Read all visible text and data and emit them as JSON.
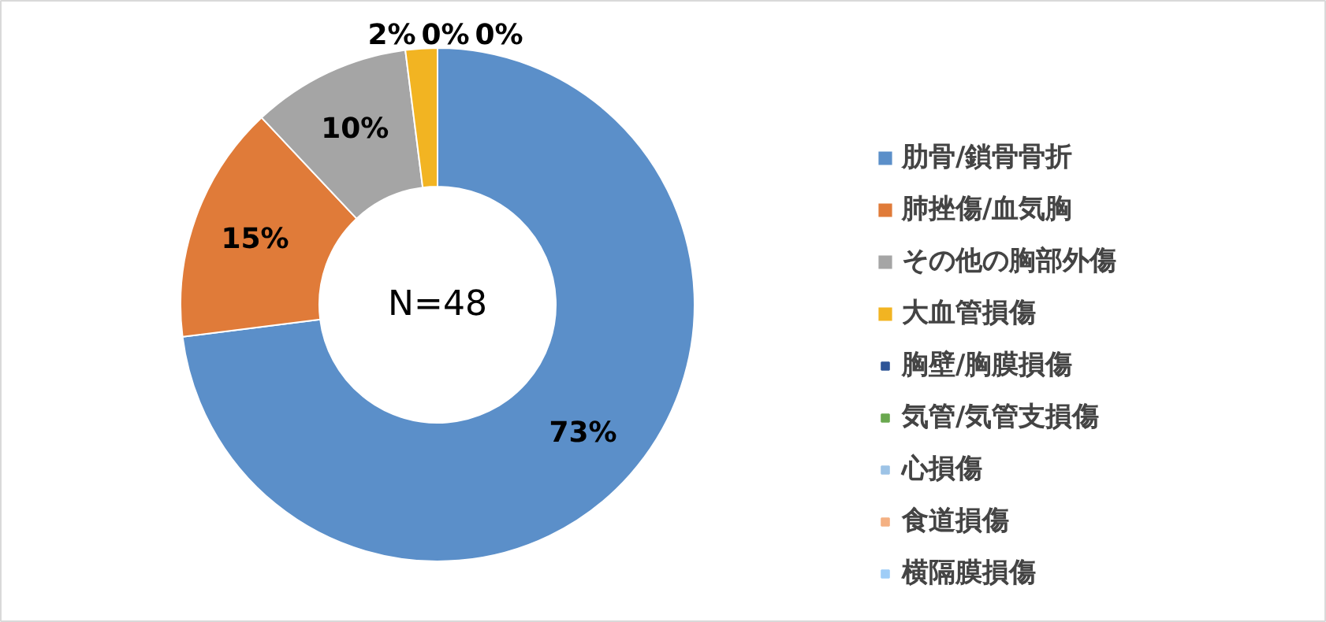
{
  "chart_data": {
    "type": "donut",
    "categories": [
      "肋骨/鎖骨骨折",
      "肺挫傷/血気胸",
      "その他の胸部外傷",
      "大血管損傷",
      "胸壁/胸膜損傷",
      "気管/気管支損傷",
      "心損傷",
      "食道損傷",
      "横隔膜損傷"
    ],
    "values": [
      73,
      15,
      10,
      2,
      0,
      0,
      0,
      0,
      0
    ],
    "colors": [
      "#5b8fc9",
      "#e07b39",
      "#a5a5a5",
      "#f2b422",
      "#2f5597",
      "#6aa84f",
      "#9dc3e6",
      "#f4b183",
      "#9fcdf7"
    ],
    "value_labels": [
      "73%",
      "15%",
      "10%",
      "2%",
      "0%",
      "0%",
      null,
      null,
      null
    ],
    "annotations": [
      "N=48"
    ],
    "legend": "right"
  }
}
